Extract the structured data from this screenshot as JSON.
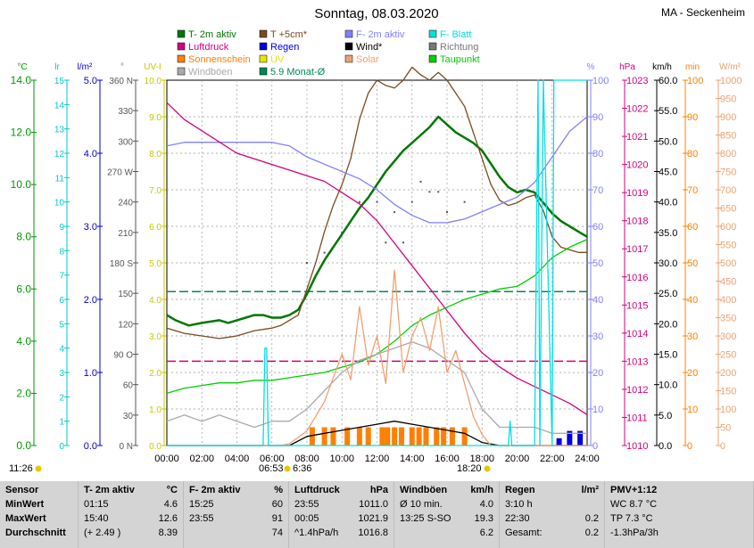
{
  "header": {
    "title": "Sonntag, 08.03.2020",
    "location": "MA - Seckenheim"
  },
  "legend": [
    {
      "label": "T- 2m aktiv",
      "color": "#007700"
    },
    {
      "label": "T +5cm*",
      "color": "#7a4a1e"
    },
    {
      "label": "F- 2m aktiv",
      "color": "#8080ff"
    },
    {
      "label": "F- Blatt",
      "color": "#00e0e0"
    },
    {
      "label": "Luftdruck",
      "color": "#d4007f"
    },
    {
      "label": "Regen",
      "color": "#0000dd"
    },
    {
      "label": "Wind*",
      "color": "#000000"
    },
    {
      "label": "Richtung",
      "color": "#777777"
    },
    {
      "label": "Sonnenschein",
      "color": "#ff8000"
    },
    {
      "label": "UV",
      "color": "#e6e600"
    },
    {
      "label": "Solar",
      "color": "#f0a070"
    },
    {
      "label": "Taupunkt",
      "color": "#00d000"
    },
    {
      "label": "Windböen",
      "color": "#aaaaaa"
    },
    {
      "label": "5.9 Monat-Ø",
      "color": "#008855"
    }
  ],
  "axis_units": [
    {
      "text": "°C",
      "color": "#009900"
    },
    {
      "text": "lr",
      "color": "#00c8c8"
    },
    {
      "text": "l/m²",
      "color": "#0000cc"
    },
    {
      "text": "°",
      "color": "#777777"
    },
    {
      "text": "UV-I",
      "color": "#c8c800"
    },
    {
      "text": "%",
      "color": "#8080ff"
    },
    {
      "text": "hPa",
      "color": "#d4007f"
    },
    {
      "text": "km/h",
      "color": "#000000"
    },
    {
      "text": "min",
      "color": "#ff8000"
    },
    {
      "text": "W/m²",
      "color": "#f0a070"
    }
  ],
  "axes": {
    "temp": {
      "ticks": [
        "14.0",
        "12.0",
        "10.0",
        "8.0",
        "6.0",
        "4.0",
        "2.0",
        "0.0"
      ],
      "color": "#009900"
    },
    "lr": {
      "ticks": [
        "15",
        "14",
        "13",
        "12",
        "11",
        "10",
        "9",
        "8",
        "7",
        "6",
        "5",
        "4",
        "3",
        "2",
        "1",
        "0"
      ],
      "color": "#00c8c8"
    },
    "rain": {
      "ticks": [
        "5.0",
        "4.0",
        "3.0",
        "2.0",
        "1.0",
        "0.0"
      ],
      "color": "#0000cc"
    },
    "dir": {
      "ticks": [
        "360 N",
        "330",
        "300",
        "270 W",
        "240",
        "210",
        "180 S",
        "150",
        "120",
        "90 O",
        "60",
        "30",
        "0 N"
      ],
      "color": "#555555"
    },
    "uv": {
      "ticks": [
        "10.0",
        "9.0",
        "8.0",
        "7.0",
        "6.0",
        "5.0",
        "4.0",
        "3.0",
        "2.0",
        "1.0",
        "0.0"
      ],
      "color": "#c8c800"
    },
    "hum": {
      "ticks": [
        "100",
        "90",
        "80",
        "70",
        "60",
        "50",
        "40",
        "30",
        "20",
        "10",
        "0"
      ],
      "color": "#8080ff"
    },
    "press": {
      "ticks": [
        "1023",
        "1022",
        "1021",
        "1020",
        "1019",
        "1018",
        "1017",
        "1016",
        "1015",
        "1014",
        "1013",
        "1012",
        "1011",
        "1010"
      ],
      "color": "#d4007f"
    },
    "wind": {
      "ticks": [
        "60.0",
        "55.0",
        "50.0",
        "45.0",
        "40.0",
        "35.0",
        "30.0",
        "25.0",
        "20.0",
        "15.0",
        "10.0",
        "5.0",
        "0.0"
      ],
      "color": "#000000"
    },
    "sunmin": {
      "ticks": [
        "100",
        "90",
        "80",
        "70",
        "60",
        "50",
        "40",
        "30",
        "20",
        "10",
        "0"
      ],
      "color": "#ff8000"
    },
    "solar": {
      "ticks": [
        "1000",
        "950",
        "900",
        "850",
        "800",
        "750",
        "700",
        "650",
        "600",
        "550",
        "500",
        "450",
        "400",
        "350",
        "300",
        "250",
        "200",
        "150",
        "100",
        "50",
        "0"
      ],
      "color": "#f0a070"
    },
    "time": {
      "ticks": [
        "00:00",
        "02:00",
        "04:00",
        "06:00",
        "08:00",
        "10:00",
        "12:00",
        "14:00",
        "16:00",
        "18:00",
        "20:00",
        "22:00",
        "24:00"
      ]
    }
  },
  "markers": {
    "left_time": "11:26",
    "sunrise": "06:53",
    "sunrise2": "6:36",
    "sunset": "18:20"
  },
  "chart_data": {
    "type": "line",
    "x_label": "",
    "x_range_hours": [
      0,
      24
    ],
    "series": [
      {
        "name": "T- 2m aktiv",
        "axis": "temp",
        "color": "#007700",
        "x": [
          0,
          0.5,
          1.25,
          2,
          3,
          3.5,
          4,
          4.5,
          5,
          5.5,
          6,
          6.5,
          7,
          7.5,
          8,
          8.5,
          9,
          9.5,
          10,
          10.5,
          11,
          11.5,
          12,
          12.5,
          13,
          13.5,
          14,
          14.5,
          15,
          15.5,
          16,
          16.5,
          17,
          17.5,
          18,
          18.5,
          19,
          19.5,
          20,
          20.5,
          21,
          21.5,
          22,
          22.5,
          23,
          23.5,
          24
        ],
        "y": [
          5.0,
          4.8,
          4.6,
          4.7,
          4.8,
          4.7,
          4.8,
          4.9,
          5.0,
          5.0,
          4.9,
          4.9,
          5.0,
          5.2,
          5.8,
          6.5,
          7.1,
          7.6,
          8.1,
          8.6,
          9.1,
          9.5,
          10.0,
          10.5,
          10.9,
          11.3,
          11.6,
          11.9,
          12.2,
          12.6,
          12.3,
          12.0,
          11.8,
          11.6,
          11.3,
          10.8,
          10.3,
          9.9,
          9.7,
          9.8,
          9.7,
          9.3,
          8.9,
          8.6,
          8.4,
          8.2,
          8.0
        ]
      },
      {
        "name": "T +5cm*",
        "axis": "temp",
        "color": "#7a4a1e",
        "x": [
          0,
          1,
          2,
          3,
          4,
          5,
          6,
          6.5,
          7,
          7.5,
          8,
          8.5,
          9,
          9.5,
          10,
          10.5,
          11,
          11.5,
          12,
          12.5,
          13,
          13.5,
          14,
          14.5,
          15,
          15.5,
          16,
          16.5,
          17,
          17.5,
          18,
          18.5,
          19,
          19.5,
          20,
          20.5,
          21,
          21.5,
          22,
          22.5,
          23,
          23.5,
          24
        ],
        "y": [
          4.5,
          4.3,
          4.2,
          4.1,
          4.2,
          4.4,
          4.5,
          4.6,
          4.8,
          5.0,
          6.0,
          7.0,
          8.2,
          9.2,
          10.0,
          11.0,
          12.5,
          13.5,
          14.0,
          13.8,
          13.7,
          14.0,
          14.5,
          14.2,
          14.0,
          14.3,
          14.0,
          13.5,
          13.0,
          12.0,
          11.0,
          10.0,
          9.4,
          9.2,
          9.3,
          9.5,
          9.6,
          9.0,
          8.0,
          7.6,
          7.5,
          7.4,
          7.4
        ]
      },
      {
        "name": "F- 2m aktiv",
        "axis": "hum",
        "color": "#8080ff",
        "x": [
          0,
          1,
          2,
          3,
          4,
          5,
          6,
          7,
          8,
          9,
          10,
          11,
          12,
          13,
          14,
          15,
          16,
          17,
          18,
          19,
          20,
          21,
          22,
          23,
          24
        ],
        "y": [
          82,
          83,
          83,
          83,
          83,
          83,
          83,
          82,
          79,
          77,
          75,
          73,
          70,
          66,
          63,
          61,
          61,
          62,
          64,
          66,
          68,
          72,
          79,
          86,
          90
        ]
      },
      {
        "name": "Luftdruck",
        "axis": "press",
        "color": "#d4007f",
        "x": [
          0,
          1,
          2,
          3,
          4,
          5,
          6,
          7,
          8,
          9,
          10,
          11,
          12,
          13,
          14,
          15,
          16,
          17,
          18,
          19,
          20,
          21,
          22,
          23,
          24
        ],
        "y": [
          1022.2,
          1021.6,
          1021.2,
          1020.8,
          1020.4,
          1020.2,
          1020.0,
          1019.8,
          1019.6,
          1019.4,
          1019.0,
          1018.6,
          1018.0,
          1017.2,
          1016.4,
          1015.6,
          1014.8,
          1014.0,
          1013.3,
          1012.8,
          1012.4,
          1012.1,
          1011.8,
          1011.5,
          1011.1
        ]
      },
      {
        "name": "Taupunkt",
        "axis": "temp",
        "color": "#00d000",
        "x": [
          0,
          1,
          2,
          3,
          4,
          5,
          6,
          7,
          8,
          9,
          10,
          11,
          12,
          13,
          14,
          15,
          16,
          17,
          18,
          19,
          20,
          21,
          22,
          23,
          24
        ],
        "y": [
          2.0,
          2.2,
          2.3,
          2.4,
          2.4,
          2.5,
          2.5,
          2.6,
          2.7,
          2.8,
          3.0,
          3.2,
          3.5,
          4.0,
          4.6,
          5.0,
          5.3,
          5.6,
          5.8,
          6.0,
          6.1,
          6.5,
          7.2,
          7.6,
          7.9
        ]
      },
      {
        "name": "Wind*",
        "axis": "wind",
        "color": "#000000",
        "x": [
          0,
          2,
          4,
          6,
          7,
          8,
          9,
          10,
          11,
          12,
          13,
          14,
          15,
          16,
          17,
          18,
          19,
          20,
          21,
          22,
          23,
          24
        ],
        "y": [
          0,
          0,
          0,
          0,
          0,
          1.5,
          2.0,
          2.5,
          3.0,
          3.5,
          4.0,
          3.5,
          3.0,
          2.5,
          2.0,
          0.5,
          0,
          0,
          0,
          0,
          0,
          0
        ]
      },
      {
        "name": "Windböen",
        "axis": "wind",
        "color": "#aaaaaa",
        "x": [
          0,
          1,
          2,
          3,
          4,
          5,
          6,
          7,
          8,
          9,
          10,
          11,
          12,
          13,
          14,
          15,
          16,
          17,
          18,
          19,
          20,
          21,
          22,
          23,
          24
        ],
        "y": [
          4,
          5,
          4,
          5,
          4,
          3,
          4,
          4,
          6,
          9,
          12,
          14,
          15,
          16,
          17,
          16,
          14,
          12,
          6,
          3,
          3,
          3,
          2,
          2,
          2
        ]
      },
      {
        "name": "Solar",
        "axis": "solar",
        "color": "#f0a070",
        "x": [
          0,
          6.5,
          7,
          8,
          9,
          10,
          10.5,
          11,
          11.5,
          12,
          12.5,
          13,
          13.5,
          14,
          14.5,
          15,
          15.5,
          16,
          16.5,
          17,
          17.5,
          18,
          18.5,
          24
        ],
        "y": [
          0,
          0,
          5,
          40,
          120,
          250,
          180,
          380,
          220,
          300,
          170,
          480,
          200,
          300,
          350,
          260,
          380,
          200,
          260,
          170,
          80,
          30,
          0,
          0
        ]
      },
      {
        "name": "F- Blatt",
        "axis": "lr",
        "color": "#00e0e0",
        "x": [
          0,
          5.5,
          5.6,
          5.7,
          5.8,
          19.5,
          19.6,
          19.7,
          20,
          21,
          21.2,
          21.3,
          21.5,
          22,
          22.1,
          22.2,
          24
        ],
        "y": [
          0,
          0,
          4,
          4,
          0,
          0,
          1,
          0,
          0,
          0,
          15,
          0,
          15,
          0,
          15,
          15,
          15
        ]
      }
    ],
    "bars": [
      {
        "name": "Sonnenschein",
        "axis": "sunmin",
        "color": "#ff8000",
        "x": [
          8.3,
          9.0,
          9.5,
          10.3,
          11.0,
          11.5,
          12.3,
          12.6,
          13.0,
          13.4,
          14.0,
          14.4,
          14.8,
          15.4,
          15.8,
          16.3,
          17.0
        ],
        "y": [
          5,
          5,
          5,
          5,
          5,
          5,
          5,
          5,
          5,
          5,
          5,
          5,
          5,
          5,
          5,
          5,
          5
        ]
      },
      {
        "name": "Regen",
        "axis": "rain",
        "color": "#0000dd",
        "x": [
          22.4,
          23.0,
          23.6
        ],
        "y": [
          0.1,
          0.2,
          0.2
        ]
      }
    ],
    "reference_lines": [
      {
        "name": "5.9 Monat-Ø",
        "axis": "temp",
        "value": 5.9,
        "color": "#008855"
      },
      {
        "name": "Luftdruck-Ref",
        "axis": "press",
        "value": 1013,
        "color": "#d4007f"
      }
    ],
    "direction_points": {
      "axis": "dir",
      "x": [
        8,
        9,
        10,
        11,
        12,
        13,
        14,
        15,
        16,
        17,
        12.5,
        13.5,
        14.5,
        15.5
      ],
      "y": [
        180,
        190,
        210,
        240,
        240,
        230,
        240,
        250,
        230,
        240,
        200,
        200,
        260,
        250
      ]
    }
  },
  "stats": [
    {
      "header": [
        "Sensor",
        ""
      ],
      "rows": [
        [
          "MinWert",
          ""
        ],
        [
          "MaxWert",
          ""
        ],
        [
          "Durchschnitt",
          ""
        ]
      ]
    },
    {
      "header": [
        "T- 2m aktiv",
        "°C"
      ],
      "rows": [
        [
          "01:15",
          "4.6"
        ],
        [
          "15:40",
          "12.6"
        ],
        [
          "(+ 2.49 )",
          "8.39"
        ]
      ]
    },
    {
      "header": [
        "F- 2m aktiv",
        "%"
      ],
      "rows": [
        [
          "15:25",
          "60"
        ],
        [
          "23:55",
          "91"
        ],
        [
          "",
          "74"
        ]
      ]
    },
    {
      "header": [
        "Luftdruck",
        "hPa"
      ],
      "rows": [
        [
          "23:55",
          "1011.0"
        ],
        [
          "00:05",
          "1021.9"
        ],
        [
          "^1.4hPa/h",
          "1016.8"
        ]
      ]
    },
    {
      "header": [
        "Windböen",
        "km/h"
      ],
      "rows": [
        [
          "Ø 10 min.",
          "4.0"
        ],
        [
          "13:25   S-SO",
          "19.3"
        ],
        [
          "",
          "6.2"
        ]
      ]
    },
    {
      "header": [
        "Regen",
        "l/m²"
      ],
      "rows": [
        [
          "3:10 h",
          ""
        ],
        [
          "22:30",
          "0.2"
        ],
        [
          "Gesamt:",
          "0.2"
        ]
      ]
    },
    {
      "header": [
        "PMV+1:12",
        ""
      ],
      "rows": [
        [
          "WC 8.7 °C",
          ""
        ],
        [
          "TP 7.3 °C",
          ""
        ],
        [
          "-1.3hPa/3h",
          ""
        ]
      ]
    }
  ]
}
